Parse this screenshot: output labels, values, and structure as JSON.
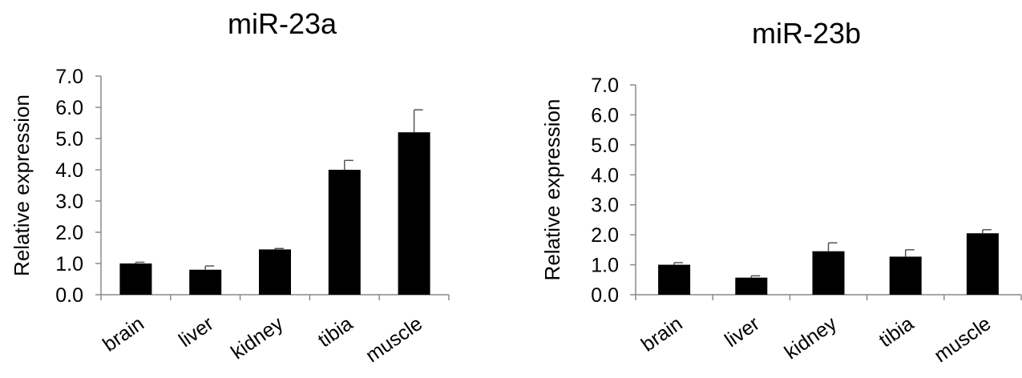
{
  "chart_data": [
    {
      "type": "bar",
      "title": "miR-23a",
      "ylabel": "Relative expression",
      "xlabel": "",
      "categories": [
        "brain",
        "liver",
        "kidney",
        "tibia",
        "muscle"
      ],
      "values": [
        1.0,
        0.8,
        1.45,
        4.0,
        5.2
      ],
      "errors": [
        0.04,
        0.12,
        0.03,
        0.3,
        0.72
      ],
      "ylim": [
        0,
        7
      ],
      "yticks": [
        "0.0",
        "1.0",
        "2.0",
        "3.0",
        "4.0",
        "5.0",
        "6.0",
        "7.0"
      ],
      "grid": false,
      "bar_color": "#000000"
    },
    {
      "type": "bar",
      "title": "miR-23b",
      "ylabel": "Relative expression",
      "xlabel": "",
      "categories": [
        "brain",
        "liver",
        "kidney",
        "tibia",
        "muscle"
      ],
      "values": [
        1.0,
        0.57,
        1.45,
        1.27,
        2.05
      ],
      "errors": [
        0.07,
        0.06,
        0.28,
        0.23,
        0.12
      ],
      "ylim": [
        0,
        7
      ],
      "yticks": [
        "0.0",
        "1.0",
        "2.0",
        "3.0",
        "4.0",
        "5.0",
        "6.0",
        "7.0"
      ],
      "grid": false,
      "bar_color": "#000000"
    }
  ]
}
